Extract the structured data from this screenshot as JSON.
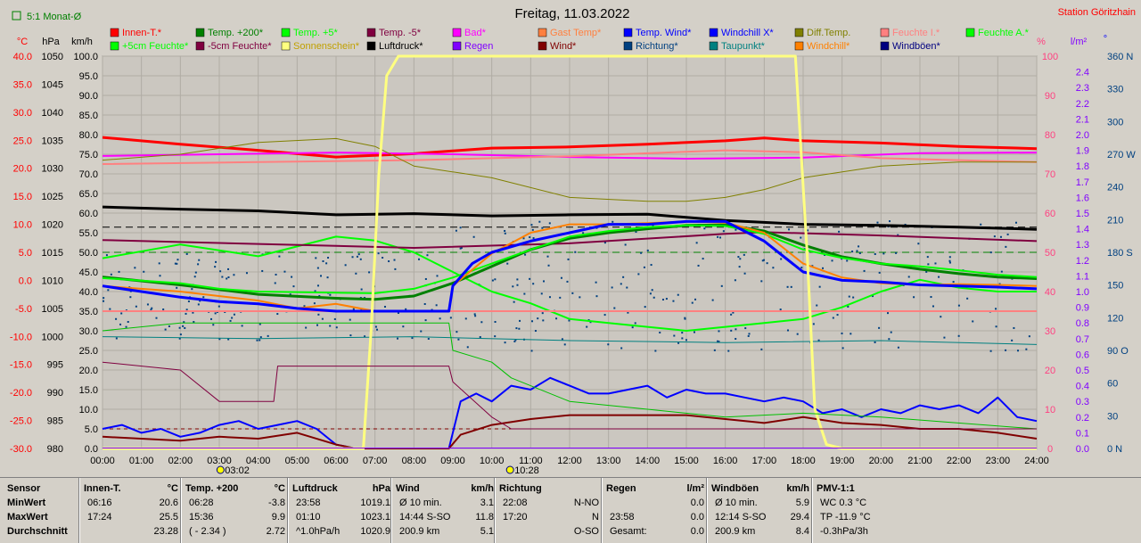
{
  "header": {
    "title": "Freitag, 11.03.2022",
    "station": "Station Göritzhain",
    "mode_label": "5:1 Monat-Ø"
  },
  "legend": {
    "row1": [
      {
        "label": "Innen-T.*",
        "color": "#ff0000"
      },
      {
        "label": "Temp. +200*",
        "color": "#008000"
      },
      {
        "label": "Temp. +5*",
        "color": "#00ff00"
      },
      {
        "label": "Temp. -5*",
        "color": "#800040"
      },
      {
        "label": "Bad*",
        "color": "#ff00ff"
      },
      {
        "label": "Gast Temp*",
        "color": "#ff8040"
      },
      {
        "label": "Temp. Wind*",
        "color": "#0000ff"
      },
      {
        "label": "Windchill X*",
        "color": "#0000ff"
      },
      {
        "label": "Diff.Temp.",
        "color": "#808000"
      },
      {
        "label": "Feuchte I.*",
        "color": "#ff8080"
      },
      {
        "label": "Feuchte A.*",
        "color": "#00ff00"
      }
    ],
    "row2": [
      {
        "label": "+5cm Feuchte*",
        "color": "#00ff00"
      },
      {
        "label": "-5cm Feuchte*",
        "color": "#800040"
      },
      {
        "label": "Sonnenschein*",
        "color": "#ffff80"
      },
      {
        "label": "Luftdruck*",
        "color": "#000000"
      },
      {
        "label": "Regen",
        "color": "#8000ff"
      },
      {
        "label": "Wind*",
        "color": "#800000"
      },
      {
        "label": "Richtung*",
        "color": "#004080"
      },
      {
        "label": "Taupunkt*",
        "color": "#008080"
      },
      {
        "label": "Windchill*",
        "color": "#ff8000"
      },
      {
        "label": "Windböen*",
        "color": "#000080"
      }
    ]
  },
  "axes": {
    "unit_c": "°C",
    "unit_hpa": "hPa",
    "unit_kmh": "km/h",
    "unit_pct": "%",
    "unit_lm2": "l/m²",
    "unit_deg": "°",
    "temp_ticks": [
      "40.0",
      "35.0",
      "30.0",
      "25.0",
      "20.0",
      "15.0",
      "10.0",
      "5.0",
      "0.0",
      "-5.0",
      "-10.0",
      "-15.0",
      "-20.0",
      "-25.0",
      "-30.0"
    ],
    "hpa_ticks": [
      "1050",
      "1045",
      "1040",
      "1035",
      "1030",
      "1025",
      "1020",
      "1015",
      "1010",
      "1005",
      "1000",
      "995",
      "990",
      "985",
      "980"
    ],
    "kmh_ticks": [
      "100.0",
      "95.0",
      "90.0",
      "85.0",
      "80.0",
      "75.0",
      "70.0",
      "65.0",
      "60.0",
      "55.0",
      "50.0",
      "45.0",
      "40.0",
      "35.0",
      "30.0",
      "25.0",
      "20.0",
      "15.0",
      "10.0",
      "5.0",
      "0.0"
    ],
    "pct_ticks": [
      "100",
      "90",
      "80",
      "70",
      "60",
      "50",
      "40",
      "30",
      "20",
      "10",
      "0"
    ],
    "rain_ticks": [
      "2.4",
      "2.3",
      "2.2",
      "2.1",
      "2.0",
      "1.9",
      "1.8",
      "1.7",
      "1.6",
      "1.5",
      "1.4",
      "1.3",
      "1.2",
      "1.1",
      "1.0",
      "0.9",
      "0.8",
      "0.7",
      "0.6",
      "0.5",
      "0.4",
      "0.3",
      "0.2",
      "0.1",
      "0.0"
    ],
    "dir_ticks": [
      "360 N",
      "330",
      "300",
      "270 W",
      "240",
      "210",
      "180 S",
      "150",
      "120",
      "90 O",
      "60",
      "30",
      "0 N"
    ],
    "time_ticks": [
      "00:00",
      "01:00",
      "02:00",
      "03:00",
      "04:00",
      "05:00",
      "06:00",
      "07:00",
      "08:00",
      "09:00",
      "10:00",
      "11:00",
      "12:00",
      "13:00",
      "14:00",
      "15:00",
      "16:00",
      "17:00",
      "18:00",
      "19:00",
      "20:00",
      "21:00",
      "22:00",
      "23:00",
      "24:00"
    ],
    "markers": [
      {
        "time": "03:02",
        "x_hour": 3.03
      },
      {
        "time": "10:28",
        "x_hour": 10.47
      }
    ]
  },
  "chart_data": {
    "type": "line",
    "xlabel": "",
    "ylabel": "",
    "x_range": [
      0,
      24
    ],
    "temp_range": [
      -30,
      40
    ],
    "hpa_range": [
      980,
      1050
    ],
    "kmh_range": [
      0,
      100
    ],
    "pct_range": [
      0,
      100
    ],
    "grid": true,
    "series": [
      {
        "name": "Innen-T.*",
        "color": "#ff0000",
        "axis": "temp",
        "width": 3,
        "x": [
          0,
          2,
          4,
          6,
          8,
          10,
          12,
          14,
          16,
          17,
          18,
          20,
          22,
          24
        ],
        "y": [
          25.5,
          24.3,
          23.2,
          22.0,
          22.6,
          23.6,
          23.8,
          24.3,
          24.9,
          25.4,
          24.9,
          24.5,
          23.9,
          23.5
        ]
      },
      {
        "name": "Bad*",
        "color": "#ff00ff",
        "axis": "temp",
        "width": 2,
        "x": [
          0,
          3,
          6,
          9,
          12,
          15,
          18,
          21,
          24
        ],
        "y": [
          22.2,
          22.5,
          22.8,
          22.5,
          22.0,
          21.7,
          21.9,
          22.7,
          22.8
        ]
      },
      {
        "name": "Feuchte I.*",
        "color": "#ff8080",
        "axis": "pct",
        "width": 2,
        "x": [
          0,
          4,
          8,
          12,
          16,
          18,
          20,
          24
        ],
        "y": [
          72.5,
          73,
          73.5,
          74.5,
          76,
          75.5,
          74,
          73
        ]
      },
      {
        "name": "Diff.Temp.",
        "color": "#808000",
        "axis": "pct",
        "width": 1,
        "x": [
          0,
          2,
          4,
          6,
          7,
          8,
          10,
          12,
          14,
          15,
          16,
          17,
          18,
          20,
          22,
          24
        ],
        "y": [
          73.5,
          75,
          78,
          79,
          77,
          72,
          69,
          64,
          63,
          63,
          64,
          66,
          69,
          72,
          73,
          73
        ]
      },
      {
        "name": "Luftdruck*",
        "color": "#000000",
        "axis": "hpa",
        "width": 3,
        "x": [
          0,
          2,
          4,
          6,
          8,
          10,
          12,
          14,
          16,
          18,
          20,
          22,
          24
        ],
        "y": [
          1023.1,
          1022.7,
          1022.4,
          1021.7,
          1021.9,
          1021.5,
          1021.7,
          1021.8,
          1020.7,
          1020.0,
          1019.8,
          1019.5,
          1019.1
        ]
      },
      {
        "name": "Feuchte A.*",
        "color": "#00ff00",
        "axis": "pct",
        "width": 2,
        "x": [
          0,
          2,
          4,
          6,
          7,
          8,
          9,
          10,
          11,
          12,
          13,
          14,
          15,
          16,
          17,
          18,
          19,
          20,
          21,
          22,
          23,
          24
        ],
        "y": [
          48.5,
          52,
          49,
          54,
          53,
          50,
          45,
          40,
          37,
          33,
          32,
          31,
          30,
          31,
          32,
          33,
          36,
          40,
          43,
          41,
          40,
          40
        ]
      },
      {
        "name": "Temp. -5*",
        "color": "#800040",
        "axis": "temp",
        "width": 2,
        "x": [
          0,
          4,
          8,
          12,
          16,
          17,
          20,
          24
        ],
        "y": [
          7.2,
          6.5,
          5.8,
          6.6,
          8.3,
          8.6,
          8.0,
          7.0
        ]
      },
      {
        "name": "Feuchte A. 2",
        "color": "#ff8080",
        "axis": "pct",
        "width": 2,
        "x": [
          0,
          8,
          12,
          16,
          18,
          20,
          24
        ],
        "y": [
          35,
          35,
          35,
          35,
          35,
          35,
          35
        ]
      },
      {
        "name": "Temp. +200*",
        "color": "#008000",
        "axis": "temp",
        "width": 3,
        "x": [
          0,
          2,
          4,
          6,
          7,
          8,
          9,
          10,
          11,
          12,
          13,
          14,
          15,
          16,
          17,
          18,
          19,
          20,
          21,
          22,
          23,
          24
        ],
        "y": [
          0.6,
          -0.8,
          -2.5,
          -3.2,
          -3.4,
          -2.8,
          -0.5,
          2.5,
          5.5,
          7.5,
          8.5,
          9.2,
          9.8,
          9.9,
          8.8,
          6.3,
          4.2,
          3.0,
          2.0,
          1.2,
          0.6,
          0.3
        ]
      },
      {
        "name": "Temp. +5*",
        "color": "#00ff00",
        "axis": "temp",
        "width": 2,
        "x": [
          0,
          2,
          3,
          4,
          6,
          7,
          8,
          9,
          10,
          11,
          12,
          13,
          14,
          15,
          16,
          17,
          18,
          19,
          20,
          21,
          22,
          23,
          24
        ],
        "y": [
          0.4,
          -0.5,
          -1.5,
          -2.0,
          -2.2,
          -2.3,
          -1.5,
          0.5,
          3.0,
          5.5,
          7.8,
          8.8,
          9.5,
          9.8,
          9.7,
          8.3,
          5.5,
          4.0,
          3.0,
          2.5,
          1.8,
          1.0,
          0.6
        ]
      },
      {
        "name": "Windchill*",
        "color": "#ff8000",
        "axis": "temp",
        "width": 2,
        "x": [
          0,
          2,
          4,
          5,
          6,
          7,
          8,
          8.9,
          9,
          10,
          11,
          12,
          13,
          14,
          15,
          16,
          17,
          18,
          19,
          20,
          21,
          22,
          23,
          24
        ],
        "y": [
          -1.0,
          -2.0,
          -3.6,
          -5.0,
          -4.2,
          -5.5,
          -5.5,
          -5.5,
          -1.0,
          4.8,
          8.5,
          10.0,
          10.0,
          10.2,
          10.5,
          10.3,
          8.5,
          3.0,
          0.5,
          -0.5,
          -0.8,
          -0.7,
          -0.8,
          -1.0
        ]
      },
      {
        "name": "Temp. Wind*",
        "color": "#0000ff",
        "axis": "temp",
        "width": 3,
        "x": [
          0,
          1,
          2,
          3,
          4,
          5,
          6,
          7,
          8,
          8.9,
          9.0,
          9.5,
          10,
          11,
          12,
          13,
          14,
          15,
          16,
          17,
          18,
          19,
          20,
          21,
          22,
          23,
          24
        ],
        "y": [
          -1.0,
          -2.0,
          -3.0,
          -3.8,
          -4.2,
          -5.0,
          -5.5,
          -5.5,
          -5.5,
          -5.5,
          -1.0,
          3.0,
          5.0,
          7.0,
          8.5,
          10.0,
          10.0,
          10.5,
          10.5,
          7.0,
          1.5,
          0.0,
          -0.3,
          -0.8,
          -1.0,
          -1.2,
          -1.5
        ]
      },
      {
        "name": "Taupunkt*",
        "color": "#008080",
        "axis": "pct",
        "width": 1,
        "x": [
          0,
          4,
          8,
          12,
          16,
          20,
          24
        ],
        "y": [
          28.5,
          28,
          28.5,
          27.5,
          27,
          27.5,
          26.5
        ]
      },
      {
        "name": "Windchill X*",
        "color": "#0000ff",
        "axis": "kmh",
        "width": 2,
        "x": [
          0,
          0.5,
          1,
          1.5,
          2,
          2.5,
          3,
          3.5,
          4,
          4.5,
          5,
          5.5,
          6,
          6.5,
          7,
          7.5,
          8,
          8.5,
          8.9,
          9.2,
          9.6,
          10,
          10.5,
          11,
          11.5,
          12,
          12.5,
          13,
          13.5,
          14,
          14.5,
          15,
          15.5,
          16,
          16.5,
          17,
          17.5,
          18,
          18.5,
          19,
          19.5,
          20,
          20.5,
          21,
          21.5,
          22,
          22.5,
          23,
          23.5,
          24
        ],
        "y": [
          5,
          6,
          4,
          5,
          3,
          4,
          6,
          7,
          5,
          6,
          7,
          5,
          1,
          0,
          0,
          0,
          0,
          0,
          0,
          12,
          14,
          12,
          16,
          15,
          18,
          16,
          14,
          14,
          15,
          16,
          13,
          15,
          14,
          14,
          13,
          12,
          13,
          12,
          9,
          10,
          8,
          10,
          9,
          11,
          10,
          11,
          9,
          13,
          8,
          7
        ]
      },
      {
        "name": "Wind*",
        "color": "#800000",
        "axis": "kmh",
        "width": 2,
        "x": [
          0,
          1,
          2,
          3,
          4,
          5,
          6,
          6.5,
          7,
          8,
          8.9,
          9.2,
          10,
          11,
          12,
          13,
          14,
          15,
          16,
          17,
          18,
          19,
          20,
          21,
          22,
          23,
          24
        ],
        "y": [
          3,
          2.5,
          2,
          3,
          2.5,
          4,
          1,
          0,
          0,
          0,
          0,
          3.5,
          6,
          7.5,
          8.5,
          8.5,
          8.5,
          8.5,
          7.5,
          6.5,
          8,
          6.5,
          6,
          5,
          5,
          4,
          2.5
        ]
      },
      {
        "name": "Sonnenschein*",
        "color": "#ffff80",
        "axis": "pct",
        "width": 3,
        "x": [
          0,
          6.7,
          6.9,
          7.1,
          7.3,
          7.6,
          8,
          12,
          17.8,
          18.1,
          18.3,
          18.6,
          19,
          24
        ],
        "y": [
          0,
          0,
          30,
          70,
          95,
          100,
          100,
          100,
          100,
          50,
          10,
          1,
          0,
          0
        ]
      },
      {
        "name": "Temp. +5 Feuchte",
        "color": "#00c000",
        "axis": "pct",
        "width": 1,
        "x": [
          0,
          2,
          5,
          8,
          8.9,
          9,
          10,
          10.5,
          12,
          14,
          16,
          18,
          20,
          24
        ],
        "y": [
          30,
          32,
          32,
          32,
          32,
          25,
          22,
          18,
          12,
          10,
          8,
          9,
          8,
          5
        ]
      },
      {
        "name": "-5cm Feuchte*",
        "color": "#800040",
        "axis": "pct",
        "width": 1,
        "x": [
          0,
          2,
          3,
          4,
          4.4,
          4.5,
          6,
          8,
          8.9,
          9,
          10,
          10.5,
          12,
          16,
          20,
          24
        ],
        "y": [
          22,
          20,
          12,
          12,
          12,
          21,
          21,
          21,
          21,
          17,
          8,
          5,
          5,
          5,
          5,
          5
        ]
      }
    ],
    "rain_total": 0.0
  },
  "stats": {
    "row_labels": [
      "Sensor",
      "MinWert",
      "MaxWert",
      "Durchschnitt"
    ],
    "blocks": [
      {
        "title": "Innen-T.",
        "unit": "°C",
        "rows": [
          [
            "06:16",
            "20.6"
          ],
          [
            "17:24",
            "25.5"
          ],
          [
            "",
            "23.28"
          ]
        ]
      },
      {
        "title": "Temp. +200",
        "unit": "°C",
        "rows": [
          [
            "06:28",
            "-3.8"
          ],
          [
            "15:36",
            "9.9"
          ],
          [
            "( - 2.34 )",
            "2.72"
          ]
        ]
      },
      {
        "title": "Luftdruck",
        "unit": "hPa",
        "rows": [
          [
            "23:58",
            "1019.1"
          ],
          [
            "01:10",
            "1023.1"
          ],
          [
            "^1.0hPa/h",
            "1020.9"
          ]
        ]
      },
      {
        "title": "Wind",
        "unit": "km/h",
        "rows": [
          [
            "Ø 10 min.",
            "3.1"
          ],
          [
            "14:44  S-SO",
            "11.8"
          ],
          [
            "200.9 km",
            "5.1"
          ]
        ]
      },
      {
        "title": "Richtung",
        "unit": "",
        "rows": [
          [
            "22:08",
            "N-NO"
          ],
          [
            "17:20",
            "N"
          ],
          [
            "",
            "O-SO"
          ]
        ]
      },
      {
        "title": "Regen",
        "unit": "l/m²",
        "rows": [
          [
            "",
            "0.0"
          ],
          [
            "23:58",
            "0.0"
          ],
          [
            "Gesamt:",
            "0.0"
          ]
        ]
      },
      {
        "title": "Windböen",
        "unit": "km/h",
        "rows": [
          [
            "Ø 10 min.",
            "5.9"
          ],
          [
            "12:14  S-SO",
            "29.4"
          ],
          [
            "200.9 km",
            "8.4"
          ]
        ]
      },
      {
        "title": "PMV-1:1",
        "unit": "",
        "rows": [
          [
            "WC 0.3 °C",
            ""
          ],
          [
            "TP -11.9 °C",
            ""
          ],
          [
            "-0.3hPa/3h",
            ""
          ]
        ]
      }
    ]
  }
}
